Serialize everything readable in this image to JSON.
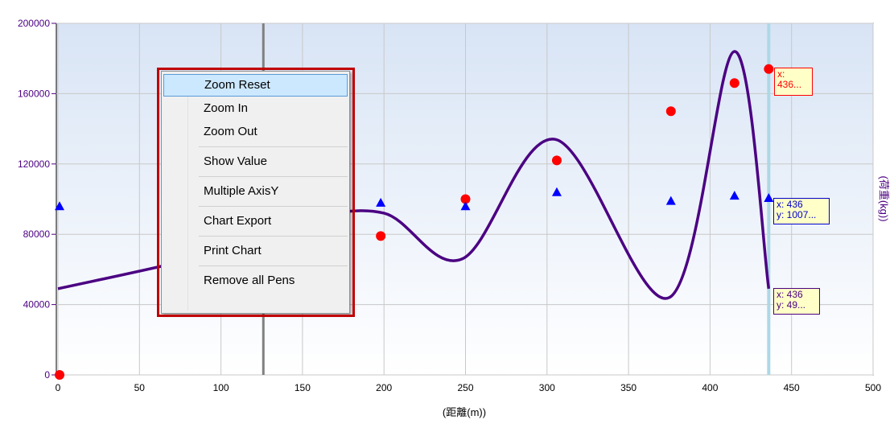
{
  "chart_data": {
    "type": "line",
    "xlabel": "(距離(m))",
    "ylabel": "(荷重(kg))",
    "xlim": [
      0,
      500
    ],
    "ylim": [
      0,
      200000
    ],
    "x_ticks": [
      "0",
      "50",
      "100",
      "150",
      "200",
      "250",
      "300",
      "350",
      "400",
      "450",
      "500"
    ],
    "y_ticks": [
      "0",
      "40000",
      "80000",
      "120000",
      "160000",
      "200000"
    ],
    "grid": true,
    "series": [
      {
        "type": "line",
        "color": "#4b0082",
        "x": [
          0,
          100,
          150,
          200,
          248,
          305,
          375,
          415,
          436
        ],
        "y": [
          49000,
          70000,
          88000,
          92000,
          66000,
          134000,
          44000,
          184000,
          49000
        ]
      },
      {
        "type": "scatter",
        "marker": "circle",
        "color": "#ff0000",
        "x": [
          1,
          198,
          250,
          306,
          376,
          415,
          436
        ],
        "y": [
          0,
          79000,
          100000,
          122000,
          150000,
          166000,
          174000
        ]
      },
      {
        "type": "scatter",
        "marker": "triangle",
        "color": "#0000ff",
        "x": [
          1,
          198,
          250,
          306,
          376,
          415,
          436
        ],
        "y": [
          96000,
          98000,
          96000,
          104000,
          99000,
          102000,
          100700
        ]
      }
    ],
    "cursor_x": [
      126,
      436
    ]
  },
  "context_menu": {
    "items": [
      {
        "label": "Zoom Reset",
        "name": "menu-zoom-reset"
      },
      {
        "label": "Zoom In",
        "name": "menu-zoom-in"
      },
      {
        "label": "Zoom Out",
        "name": "menu-zoom-out"
      },
      {
        "label": "Show Value",
        "name": "menu-show-value"
      },
      {
        "label": "Multiple AxisY",
        "name": "menu-multiple-axisy"
      },
      {
        "label": "Chart Export",
        "name": "menu-chart-export"
      },
      {
        "label": "Print Chart",
        "name": "menu-print-chart"
      },
      {
        "label": "Remove all Pens",
        "name": "menu-remove-all-pens"
      }
    ],
    "separators_after": [
      2,
      3,
      4,
      5,
      6
    ],
    "highlighted_index": 0
  },
  "tooltips": {
    "red": "x:\n436...",
    "blue": "x: 436\ny: 1007...",
    "purple": "x: 436\ny: 49..."
  },
  "colors": {
    "plot_top": "#d8e4f5",
    "plot_bottom": "#ffffff",
    "highlight_frame": "#c00000",
    "cursor_left": "#808080",
    "cursor_right": "#add8e6"
  }
}
